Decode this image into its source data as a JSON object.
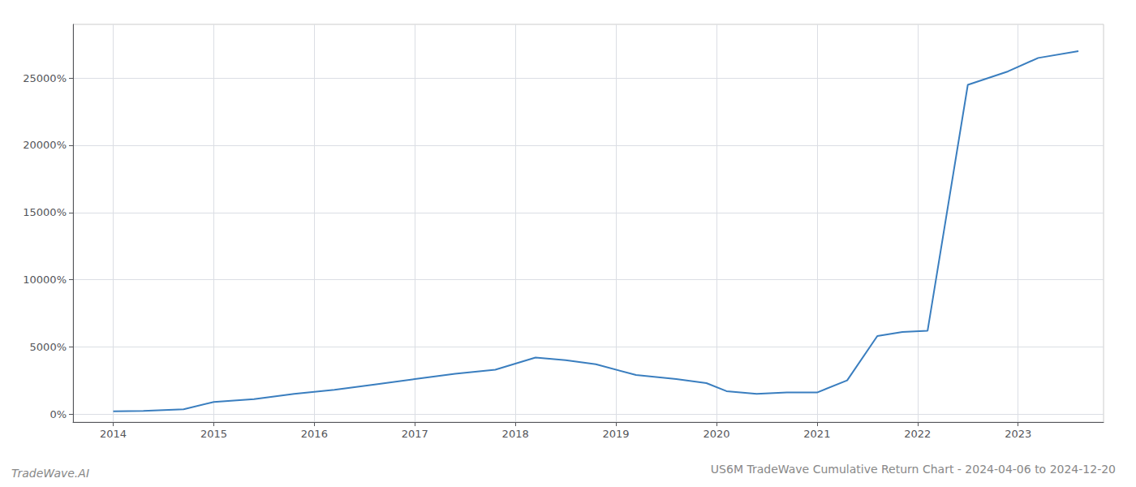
{
  "chart_data": {
    "type": "line",
    "title": "US6M TradeWave Cumulative Return Chart - 2024-04-06 to 2024-12-20",
    "annotations": [
      "TradeWave.AI"
    ],
    "x": [
      2014.0,
      2014.3,
      2014.7,
      2015.0,
      2015.4,
      2015.8,
      2016.2,
      2016.6,
      2017.0,
      2017.4,
      2017.8,
      2018.2,
      2018.5,
      2018.8,
      2019.2,
      2019.6,
      2019.9,
      2020.1,
      2020.4,
      2020.7,
      2021.0,
      2021.3,
      2021.6,
      2021.85,
      2022.1,
      2022.5,
      2022.9,
      2023.2,
      2023.6
    ],
    "values": [
      200,
      230,
      350,
      900,
      1100,
      1500,
      1800,
      2200,
      2600,
      3000,
      3300,
      4200,
      4000,
      3700,
      2900,
      2600,
      2300,
      1700,
      1500,
      1600,
      1600,
      2500,
      5800,
      6100,
      6200,
      24500,
      25500,
      26500,
      27000
    ],
    "color": "#3a7ebf",
    "xlim": [
      2013.6,
      2023.85
    ],
    "xticks": [
      2014,
      2015,
      2016,
      2017,
      2018,
      2019,
      2020,
      2021,
      2022,
      2023
    ],
    "ylim": [
      -600,
      29000
    ],
    "yticks": [
      {
        "value": 0,
        "label": "0%"
      },
      {
        "value": 5000,
        "label": "5000%"
      },
      {
        "value": 10000,
        "label": "10000%"
      },
      {
        "value": 15000,
        "label": "15000%"
      },
      {
        "value": 20000,
        "label": "20000%"
      },
      {
        "value": 25000,
        "label": "25000%"
      }
    ],
    "grid": true
  }
}
